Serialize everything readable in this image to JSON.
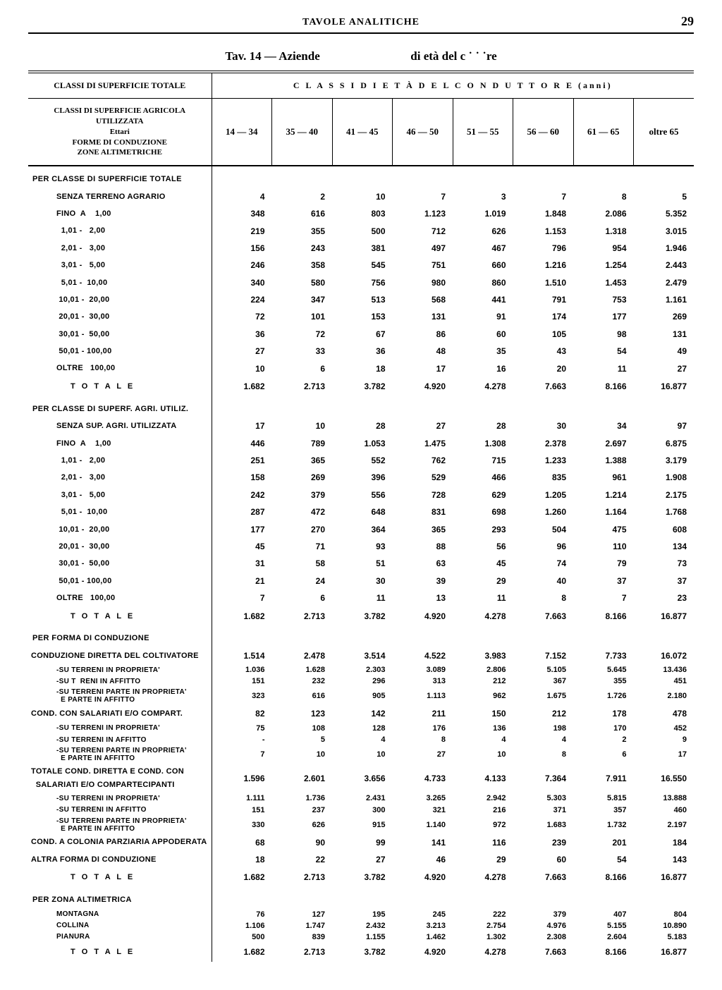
{
  "page": {
    "header_center": "TAVOLE ANALITICHE",
    "page_number": "29",
    "tav_title_left": "Tav. 14 — Aziende",
    "tav_title_right": "di età del c   ˙ ˙ ˙re"
  },
  "table": {
    "stub_top": "CLASSI DI SUPERFICIE TOTALE",
    "stub_lines": "CLASSI DI SUPERFICIE AGRICOLA\nUTILIZZATA\nEttari\nFORME DI CONDUZIONE\nZONE ALTIMETRICHE",
    "span_header": "C L A S S I   D I   E T À   D E L   C O N D U T T O R E   (anni)",
    "age_cols": [
      "14 — 34",
      "35 — 40",
      "41 — 45",
      "46 — 50",
      "51 — 55",
      "56 — 60",
      "61 — 65",
      "oltre 65"
    ]
  },
  "rows": [
    {
      "type": "section",
      "label": "PER CLASSE DI SUPERFICIE TOTALE"
    },
    {
      "type": "data",
      "label": "SENZA TERRENO AGRARIO",
      "v": [
        "4",
        "2",
        "10",
        "7",
        "3",
        "7",
        "8",
        "5"
      ]
    },
    {
      "type": "data",
      "label": "FINO  A    1,00",
      "v": [
        "348",
        "616",
        "803",
        "1.123",
        "1.019",
        "1.848",
        "2.086",
        "5.352"
      ]
    },
    {
      "type": "data",
      "label": "  1,01 -   2,00",
      "v": [
        "219",
        "355",
        "500",
        "712",
        "626",
        "1.153",
        "1.318",
        "3.015"
      ]
    },
    {
      "type": "data",
      "label": "  2,01 -   3,00",
      "v": [
        "156",
        "243",
        "381",
        "497",
        "467",
        "796",
        "954",
        "1.946"
      ]
    },
    {
      "type": "data",
      "label": "  3,01 -   5,00",
      "v": [
        "246",
        "358",
        "545",
        "751",
        "660",
        "1.216",
        "1.254",
        "2.443"
      ]
    },
    {
      "type": "data",
      "label": "  5,01 -  10,00",
      "v": [
        "340",
        "580",
        "756",
        "980",
        "860",
        "1.510",
        "1.453",
        "2.479"
      ]
    },
    {
      "type": "data",
      "label": " 10,01 -  20,00",
      "v": [
        "224",
        "347",
        "513",
        "568",
        "441",
        "791",
        "753",
        "1.161"
      ]
    },
    {
      "type": "data",
      "label": " 20,01 -  30,00",
      "v": [
        "72",
        "101",
        "153",
        "131",
        "91",
        "174",
        "177",
        "269"
      ]
    },
    {
      "type": "data",
      "label": " 30,01 -  50,00",
      "v": [
        "36",
        "72",
        "67",
        "86",
        "60",
        "105",
        "98",
        "131"
      ]
    },
    {
      "type": "data",
      "label": " 50,01 - 100,00",
      "v": [
        "27",
        "33",
        "36",
        "48",
        "35",
        "43",
        "54",
        "49"
      ]
    },
    {
      "type": "data",
      "label": "OLTRE   100,00",
      "v": [
        "10",
        "6",
        "18",
        "17",
        "16",
        "20",
        "11",
        "27"
      ]
    },
    {
      "type": "tot",
      "label": "T O T A L E",
      "v": [
        "1.682",
        "2.713",
        "3.782",
        "4.920",
        "4.278",
        "7.663",
        "8.166",
        "16.877"
      ]
    },
    {
      "type": "section",
      "label": "PER CLASSE DI SUPERF. AGRI. UTILIZ."
    },
    {
      "type": "data",
      "label": "SENZA SUP. AGRI. UTILIZZATA",
      "v": [
        "17",
        "10",
        "28",
        "27",
        "28",
        "30",
        "34",
        "97"
      ]
    },
    {
      "type": "data",
      "label": "FINO  A    1,00",
      "v": [
        "446",
        "789",
        "1.053",
        "1.475",
        "1.308",
        "2.378",
        "2.697",
        "6.875"
      ]
    },
    {
      "type": "data",
      "label": "  1,01 -   2,00",
      "v": [
        "251",
        "365",
        "552",
        "762",
        "715",
        "1.233",
        "1.388",
        "3.179"
      ]
    },
    {
      "type": "data",
      "label": "  2,01 -   3,00",
      "v": [
        "158",
        "269",
        "396",
        "529",
        "466",
        "835",
        "961",
        "1.908"
      ]
    },
    {
      "type": "data",
      "label": "  3,01 -   5,00",
      "v": [
        "242",
        "379",
        "556",
        "728",
        "629",
        "1.205",
        "1.214",
        "2.175"
      ]
    },
    {
      "type": "data",
      "label": "  5,01 -  10,00",
      "v": [
        "287",
        "472",
        "648",
        "831",
        "698",
        "1.260",
        "1.164",
        "1.768"
      ]
    },
    {
      "type": "data",
      "label": " 10,01 -  20,00",
      "v": [
        "177",
        "270",
        "364",
        "365",
        "293",
        "504",
        "475",
        "608"
      ]
    },
    {
      "type": "data",
      "label": " 20,01 -  30,00",
      "v": [
        "45",
        "71",
        "93",
        "88",
        "56",
        "96",
        "110",
        "134"
      ]
    },
    {
      "type": "data",
      "label": " 30,01 -  50,00",
      "v": [
        "31",
        "58",
        "51",
        "63",
        "45",
        "74",
        "79",
        "73"
      ]
    },
    {
      "type": "data",
      "label": " 50,01 - 100,00",
      "v": [
        "21",
        "24",
        "30",
        "39",
        "29",
        "40",
        "37",
        "37"
      ]
    },
    {
      "type": "data",
      "label": "OLTRE   100,00",
      "v": [
        "7",
        "6",
        "11",
        "13",
        "11",
        "8",
        "7",
        "23"
      ]
    },
    {
      "type": "tot",
      "label": "T O T A L E",
      "v": [
        "1.682",
        "2.713",
        "3.782",
        "4.920",
        "4.278",
        "7.663",
        "8.166",
        "16.877"
      ]
    },
    {
      "type": "section",
      "label": "PER FORMA DI CONDUZIONE"
    },
    {
      "type": "data",
      "label": "CONDUZIONE DIRETTA DEL COLTIVATORE",
      "pad": 0,
      "v": [
        "1.514",
        "2.478",
        "3.514",
        "4.522",
        "3.983",
        "7.152",
        "7.733",
        "16.072"
      ]
    },
    {
      "type": "subdata",
      "label": "-SU TERRENI IN PROPRIETA'",
      "v": [
        "1.036",
        "1.628",
        "2.303",
        "3.089",
        "2.806",
        "5.105",
        "5.645",
        "13.436"
      ]
    },
    {
      "type": "subdata",
      "label": "-SU T  RENI IN AFFITTO",
      "v": [
        "151",
        "232",
        "296",
        "313",
        "212",
        "367",
        "355",
        "451"
      ]
    },
    {
      "type": "subdata",
      "label": "-SU TERRENI PARTE IN PROPRIETA'\n  E PARTE IN AFFITTO",
      "v": [
        "323",
        "616",
        "905",
        "1.113",
        "962",
        "1.675",
        "1.726",
        "2.180"
      ]
    },
    {
      "type": "data",
      "label": "COND. CON SALARIATI E/O COMPART.",
      "pad": 0,
      "v": [
        "82",
        "123",
        "142",
        "211",
        "150",
        "212",
        "178",
        "478"
      ]
    },
    {
      "type": "subdata",
      "label": "-SU TERRENI IN PROPRIETA'",
      "v": [
        "75",
        "108",
        "128",
        "176",
        "136",
        "198",
        "170",
        "452"
      ]
    },
    {
      "type": "subdata",
      "label": "-SU TERRENI IN AFFITTO",
      "v": [
        "-",
        "5",
        "4",
        "8",
        "4",
        "4",
        "2",
        "9"
      ]
    },
    {
      "type": "subdata",
      "label": "-SU TERRENI PARTE IN PROPRIETA'\n  E PARTE IN AFFITTO",
      "v": [
        "7",
        "10",
        "10",
        "27",
        "10",
        "8",
        "6",
        "17"
      ]
    },
    {
      "type": "data",
      "label": "TOTALE COND. DIRETTA E COND. CON\n  SALARIATI E/O COMPARTECIPANTI",
      "pad": 0,
      "v": [
        "1.596",
        "2.601",
        "3.656",
        "4.733",
        "4.133",
        "7.364",
        "7.911",
        "16.550"
      ]
    },
    {
      "type": "subdata",
      "label": "-SU TERRENI IN PROPRIETA'",
      "v": [
        "1.111",
        "1.736",
        "2.431",
        "3.265",
        "2.942",
        "5.303",
        "5.815",
        "13.888"
      ]
    },
    {
      "type": "subdata",
      "label": "-SU TERRENI IN AFFITTO",
      "v": [
        "151",
        "237",
        "300",
        "321",
        "216",
        "371",
        "357",
        "460"
      ]
    },
    {
      "type": "subdata",
      "label": "-SU TERRENI PARTE IN PROPRIETA'\n  E PARTE IN AFFITTO",
      "v": [
        "330",
        "626",
        "915",
        "1.140",
        "972",
        "1.683",
        "1.732",
        "2.197"
      ]
    },
    {
      "type": "data",
      "label": "COND. A COLONIA PARZIARIA APPODERATA",
      "pad": 0,
      "v": [
        "68",
        "90",
        "99",
        "141",
        "116",
        "239",
        "201",
        "184"
      ]
    },
    {
      "type": "data",
      "label": "ALTRA FORMA DI CONDUZIONE",
      "pad": 0,
      "v": [
        "18",
        "22",
        "27",
        "46",
        "29",
        "60",
        "54",
        "143"
      ]
    },
    {
      "type": "tot",
      "label": "T O T A L E",
      "v": [
        "1.682",
        "2.713",
        "3.782",
        "4.920",
        "4.278",
        "7.663",
        "8.166",
        "16.877"
      ]
    },
    {
      "type": "section",
      "label": "PER ZONA ALTIMETRICA"
    },
    {
      "type": "subdata",
      "label": "MONTAGNA",
      "v": [
        "76",
        "127",
        "195",
        "245",
        "222",
        "379",
        "407",
        "804"
      ]
    },
    {
      "type": "subdata",
      "label": "COLLINA",
      "v": [
        "1.106",
        "1.747",
        "2.432",
        "3.213",
        "2.754",
        "4.976",
        "5.155",
        "10.890"
      ]
    },
    {
      "type": "subdata",
      "label": "PIANURA",
      "v": [
        "500",
        "839",
        "1.155",
        "1.462",
        "1.302",
        "2.308",
        "2.604",
        "5.183"
      ]
    },
    {
      "type": "tot",
      "label": "T O T A L E",
      "v": [
        "1.682",
        "2.713",
        "3.782",
        "4.920",
        "4.278",
        "7.663",
        "8.166",
        "16.877"
      ]
    }
  ]
}
